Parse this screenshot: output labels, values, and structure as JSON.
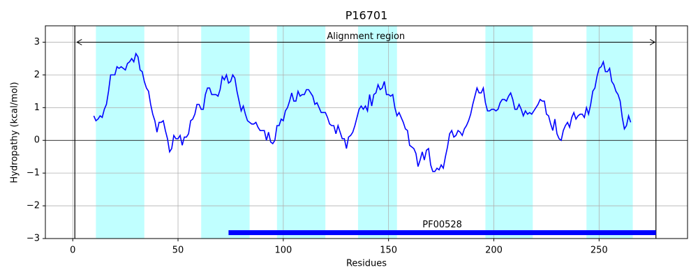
{
  "chart_data": {
    "type": "line",
    "title": "P16701",
    "xlabel": "Residues",
    "ylabel": "Hydropathy (kcal/mol)",
    "xlim": [
      -13,
      292
    ],
    "ylim": [
      -3,
      3.5
    ],
    "xticks": [
      0,
      50,
      100,
      150,
      200,
      250
    ],
    "yticks": [
      {
        "value": -3,
        "label": "−3"
      },
      {
        "value": -2,
        "label": "−2"
      },
      {
        "value": -1,
        "label": "−1"
      },
      0,
      1,
      2,
      3
    ],
    "grid": true,
    "hline": 0,
    "vlines": [
      1,
      277
    ],
    "spans": [
      [
        11,
        34
      ],
      [
        61,
        84
      ],
      [
        97,
        120
      ],
      [
        135.5,
        154
      ],
      [
        196,
        218.5
      ],
      [
        244,
        266
      ]
    ],
    "span_color": "#c0ffff",
    "region_arrow": {
      "text": "Alignment region",
      "x": [
        2,
        276.5
      ],
      "y": 3
    },
    "domains": [
      {
        "name": "PF00528",
        "start": 74,
        "end": 277,
        "y": -2.82,
        "color": "#0000ff"
      }
    ],
    "series": [
      {
        "color": "#0000ff",
        "x": [
          10,
          11,
          12,
          13,
          14,
          15,
          16,
          17,
          18,
          19,
          20,
          21,
          22,
          23,
          24,
          25,
          26,
          27,
          28,
          29,
          30,
          31,
          32,
          33,
          34,
          35,
          36,
          37,
          38,
          39,
          40,
          41,
          42,
          43,
          44,
          45,
          46,
          47,
          48,
          49,
          50,
          51,
          52,
          53,
          54,
          55,
          56,
          57,
          58,
          59,
          60,
          61,
          62,
          63,
          64,
          65,
          66,
          67,
          68,
          69,
          70,
          71,
          72,
          73,
          74,
          75,
          76,
          77,
          78,
          79,
          80,
          81,
          82,
          83,
          84,
          85,
          86,
          87,
          88,
          89,
          90,
          91,
          92,
          93,
          94,
          95,
          96,
          97,
          98,
          99,
          100,
          101,
          102,
          103,
          104,
          105,
          106,
          107,
          108,
          109,
          110,
          111,
          112,
          113,
          114,
          115,
          116,
          117,
          118,
          119,
          120,
          121,
          122,
          123,
          124,
          125,
          126,
          127,
          128,
          129,
          130,
          131,
          132,
          133,
          134,
          135,
          136,
          137,
          138,
          139,
          140,
          141,
          142,
          143,
          144,
          145,
          146,
          147,
          148,
          149,
          150,
          151,
          152,
          153,
          154,
          155,
          156,
          157,
          158,
          159,
          160,
          161,
          162,
          163,
          164,
          165,
          166,
          167,
          168,
          169,
          170,
          171,
          172,
          173,
          174,
          175,
          176,
          177,
          178,
          179,
          180,
          181,
          182,
          183,
          184,
          185,
          186,
          187,
          188,
          189,
          190,
          191,
          192,
          193,
          194,
          195,
          196,
          197,
          198,
          199,
          200,
          201,
          202,
          203,
          204,
          205,
          206,
          207,
          208,
          209,
          210,
          211,
          212,
          213,
          214,
          215,
          216,
          217,
          218,
          219,
          220,
          221,
          222,
          223,
          224,
          225,
          226,
          227,
          228,
          229,
          230,
          231,
          232,
          233,
          234,
          235,
          236,
          237,
          238,
          239,
          240,
          241,
          242,
          243,
          244,
          245,
          246,
          247,
          248,
          249,
          250,
          251,
          252,
          253,
          254,
          255,
          256,
          257,
          258,
          259,
          260,
          261,
          262,
          263,
          264,
          265
        ],
        "values": [
          0.75,
          0.6,
          0.65,
          0.75,
          0.7,
          0.95,
          1.1,
          1.5,
          2.0,
          2.0,
          2.0,
          2.25,
          2.2,
          2.25,
          2.2,
          2.15,
          2.35,
          2.4,
          2.5,
          2.4,
          2.65,
          2.55,
          2.15,
          2.1,
          1.8,
          1.6,
          1.5,
          1.1,
          0.8,
          0.6,
          0.25,
          0.55,
          0.55,
          0.6,
          0.3,
          0.05,
          -0.35,
          -0.25,
          0.15,
          0.05,
          0.05,
          0.15,
          -0.15,
          0.1,
          0.1,
          0.2,
          0.6,
          0.65,
          0.8,
          1.1,
          1.1,
          0.95,
          0.95,
          1.4,
          1.6,
          1.6,
          1.4,
          1.4,
          1.4,
          1.35,
          1.55,
          1.95,
          1.85,
          2.0,
          1.75,
          1.8,
          2.0,
          1.9,
          1.5,
          1.2,
          0.9,
          1.05,
          0.8,
          0.6,
          0.55,
          0.5,
          0.5,
          0.55,
          0.4,
          0.3,
          0.3,
          0.3,
          0.0,
          0.25,
          -0.05,
          -0.1,
          0.0,
          0.45,
          0.45,
          0.65,
          0.6,
          0.9,
          1.0,
          1.2,
          1.45,
          1.2,
          1.2,
          1.5,
          1.35,
          1.4,
          1.4,
          1.55,
          1.55,
          1.45,
          1.35,
          1.1,
          1.15,
          1.0,
          0.85,
          0.85,
          0.85,
          0.7,
          0.5,
          0.45,
          0.45,
          0.2,
          0.45,
          0.25,
          0.05,
          0.05,
          -0.25,
          0.1,
          0.15,
          0.25,
          0.45,
          0.7,
          0.95,
          1.05,
          0.95,
          1.05,
          0.9,
          1.4,
          1.05,
          1.4,
          1.45,
          1.7,
          1.55,
          1.6,
          1.8,
          1.4,
          1.4,
          1.35,
          1.4,
          1.0,
          0.75,
          0.85,
          0.7,
          0.55,
          0.35,
          0.3,
          -0.15,
          -0.2,
          -0.25,
          -0.4,
          -0.8,
          -0.6,
          -0.35,
          -0.6,
          -0.3,
          -0.25,
          -0.75,
          -0.95,
          -0.95,
          -0.85,
          -0.9,
          -0.75,
          -0.85,
          -0.5,
          -0.2,
          0.2,
          0.3,
          0.1,
          0.15,
          0.3,
          0.25,
          0.15,
          0.35,
          0.45,
          0.6,
          0.8,
          1.1,
          1.35,
          1.6,
          1.45,
          1.45,
          1.6,
          1.15,
          0.9,
          0.9,
          0.95,
          0.95,
          0.9,
          0.95,
          1.15,
          1.25,
          1.25,
          1.2,
          1.35,
          1.45,
          1.25,
          0.95,
          0.95,
          1.1,
          0.95,
          0.75,
          0.9,
          0.8,
          0.85,
          0.8,
          0.9,
          1.0,
          1.1,
          1.25,
          1.2,
          1.2,
          0.8,
          0.75,
          0.5,
          0.3,
          0.65,
          0.2,
          0.05,
          0.0,
          0.3,
          0.45,
          0.55,
          0.4,
          0.7,
          0.85,
          0.65,
          0.75,
          0.8,
          0.8,
          0.7,
          1.0,
          0.8,
          1.1,
          1.5,
          1.6,
          1.95,
          2.2,
          2.25,
          2.4,
          2.1,
          2.1,
          2.2,
          1.8,
          1.7,
          1.5,
          1.4,
          1.2,
          0.7,
          0.35,
          0.45,
          0.75,
          0.55
        ]
      }
    ]
  }
}
